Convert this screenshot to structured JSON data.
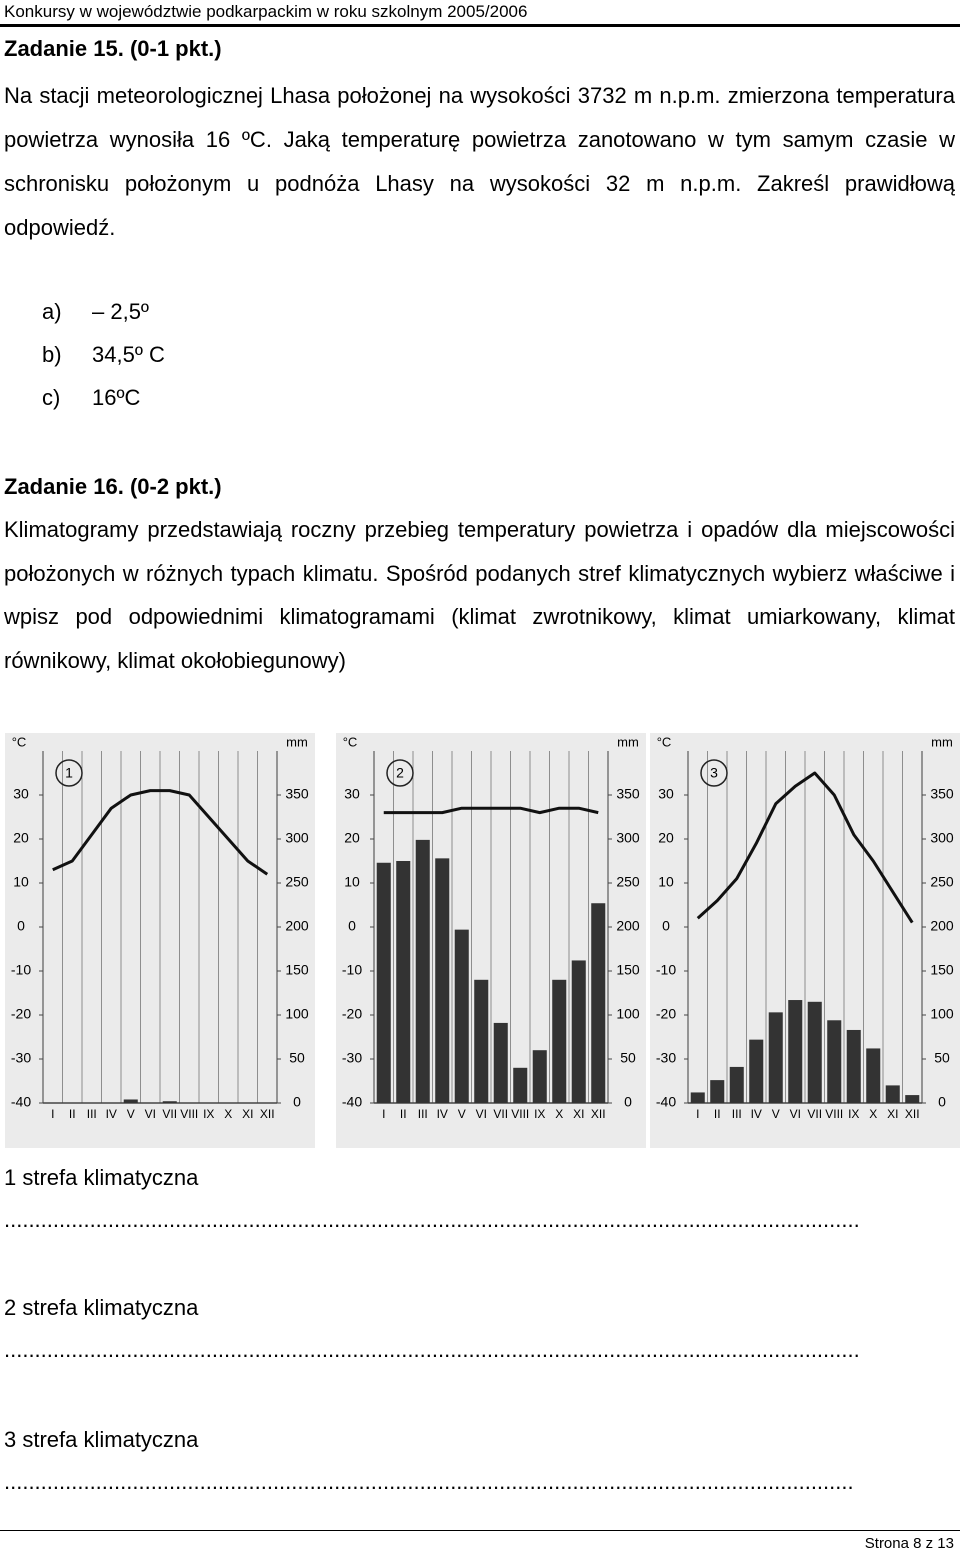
{
  "header": "Konkursy w województwie podkarpackim w roku szkolnym 2005/2006",
  "task15": {
    "title": "Zadanie 15. (0-1 pkt.)",
    "text": "Na stacji meteorologicznej Lhasa położonej na wysokości 3732 m n.p.m. zmierzona temperatura powietrza wynosiła 16 ºC. Jaką temperaturę powietrza zanotowano w tym samym czasie w schronisku położonym u podnóża Lhasy na wysokości 32 m n.p.m. Zakreśl prawidłową odpowiedź.",
    "options": [
      {
        "letter": "a)",
        "text": "– 2,5º"
      },
      {
        "letter": "b)",
        "text": "34,5º C"
      },
      {
        "letter": "c)",
        "text": "16ºC"
      }
    ]
  },
  "task16": {
    "title": "Zadanie 16. (0-2 pkt.)",
    "text": "Klimatogramy przedstawiają roczny przebieg temperatury powietrza i opadów dla miejscowości położonych w różnych typach klimatu. Spośród podanych stref klimatycznych wybierz właściwe i wpisz pod odpowiednimi klimatogramami (klimat zwrotnikowy, klimat umiarkowany, klimat równikowy, klimat okołobiegunowy)"
  },
  "chart_data": [
    {
      "type": "climatogram",
      "number": "1",
      "y_label": "°C",
      "y2_label": "mm",
      "categories": [
        "I",
        "II",
        "III",
        "IV",
        "V",
        "VI",
        "VII",
        "VIII",
        "IX",
        "X",
        "XI",
        "XII"
      ],
      "temperature": {
        "color": "#111111",
        "values": [
          13,
          15,
          21,
          27,
          30,
          31,
          31,
          30,
          25,
          20,
          15,
          12
        ]
      },
      "precipitation": {
        "color": "#333333",
        "axis": "y2",
        "values": [
          0,
          0,
          0,
          0,
          4,
          0,
          2,
          0,
          0,
          0,
          0,
          0
        ]
      },
      "ylim": [
        -40,
        40
      ],
      "yticks": [
        -40,
        -30,
        -20,
        -10,
        0,
        10,
        20,
        30
      ],
      "y2lim": [
        0,
        400
      ],
      "y2ticks": [
        0,
        50,
        100,
        150,
        200,
        250,
        300,
        350
      ]
    },
    {
      "type": "climatogram",
      "number": "2",
      "y_label": "°C",
      "y2_label": "mm",
      "categories": [
        "I",
        "II",
        "III",
        "IV",
        "V",
        "VI",
        "VII",
        "VIII",
        "IX",
        "X",
        "XI",
        "XII"
      ],
      "temperature": {
        "color": "#111111",
        "values": [
          26,
          26,
          26,
          26,
          27,
          27,
          27,
          27,
          26,
          27,
          27,
          26
        ]
      },
      "precipitation": {
        "color": "#333333",
        "axis": "y2",
        "values": [
          273,
          275,
          299,
          278,
          197,
          140,
          91,
          40,
          60,
          140,
          162,
          227
        ]
      },
      "ylim": [
        -40,
        40
      ],
      "yticks": [
        -40,
        -30,
        -20,
        -10,
        0,
        10,
        20,
        30
      ],
      "y2lim": [
        0,
        400
      ],
      "y2ticks": [
        0,
        50,
        100,
        150,
        200,
        250,
        300,
        350
      ]
    },
    {
      "type": "climatogram",
      "number": "3",
      "y_label": "°C",
      "y2_label": "mm",
      "categories": [
        "I",
        "II",
        "III",
        "IV",
        "V",
        "VI",
        "VII",
        "VIII",
        "IX",
        "X",
        "XI",
        "XII"
      ],
      "temperature": {
        "color": "#111111",
        "values": [
          2,
          6,
          11,
          19,
          28,
          32,
          35,
          30,
          21,
          15,
          8,
          1
        ]
      },
      "precipitation": {
        "color": "#333333",
        "axis": "y2",
        "values": [
          12,
          26,
          41,
          72,
          103,
          117,
          115,
          94,
          83,
          62,
          20,
          9
        ]
      },
      "ylim": [
        -40,
        40
      ],
      "yticks": [
        -40,
        -30,
        -20,
        -10,
        0,
        10,
        20,
        30
      ],
      "y2lim": [
        0,
        400
      ],
      "y2ticks": [
        0,
        50,
        100,
        150,
        200,
        250,
        300,
        350
      ]
    }
  ],
  "answers": [
    {
      "label": "1 strefa klimatyczna",
      "line": "............................................................................................................................................"
    },
    {
      "label": "2 strefa klimatyczna",
      "line": "............................................................................................................................................"
    },
    {
      "label": "3 strefa klimatyczna",
      "line": "..........................................................................................................................................."
    }
  ],
  "footer": "Strona 8 z 13"
}
